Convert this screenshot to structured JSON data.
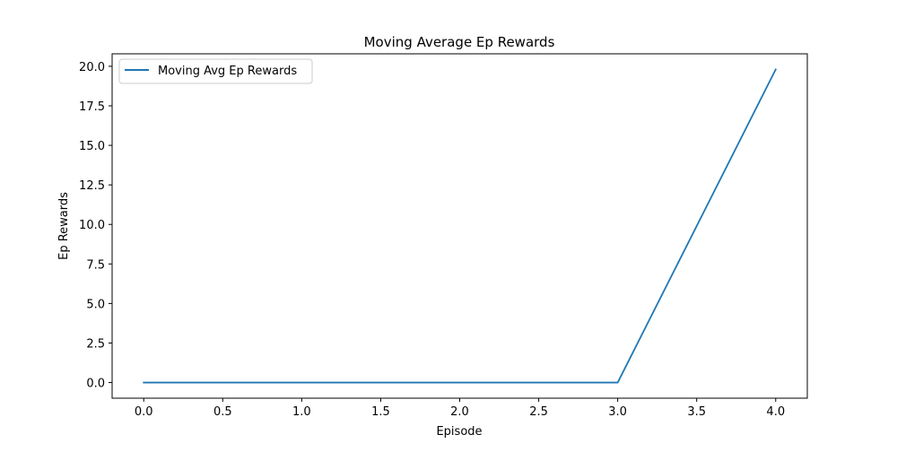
{
  "chart_data": {
    "type": "line",
    "title": "Moving Average Ep Rewards",
    "xlabel": "Episode",
    "ylabel": "Ep Rewards",
    "x": [
      0,
      1,
      2,
      3,
      4
    ],
    "series": [
      {
        "name": "Moving Avg Ep Rewards",
        "values": [
          0,
          0,
          0,
          0,
          19.8
        ]
      }
    ],
    "xlim": [
      -0.2,
      4.2
    ],
    "ylim": [
      -0.99,
      20.79
    ],
    "xticks": [
      "0.0",
      "0.5",
      "1.0",
      "1.5",
      "2.0",
      "2.5",
      "3.0",
      "3.5",
      "4.0"
    ],
    "xtick_values": [
      0,
      0.5,
      1.0,
      1.5,
      2.0,
      2.5,
      3.0,
      3.5,
      4.0
    ],
    "yticks": [
      "0.0",
      "2.5",
      "5.0",
      "7.5",
      "10.0",
      "12.5",
      "15.0",
      "17.5",
      "20.0"
    ],
    "ytick_values": [
      0,
      2.5,
      5.0,
      7.5,
      10.0,
      12.5,
      15.0,
      17.5,
      20.0
    ],
    "grid": false,
    "legend_position": "top-left",
    "line_color": "#1f77b4"
  }
}
